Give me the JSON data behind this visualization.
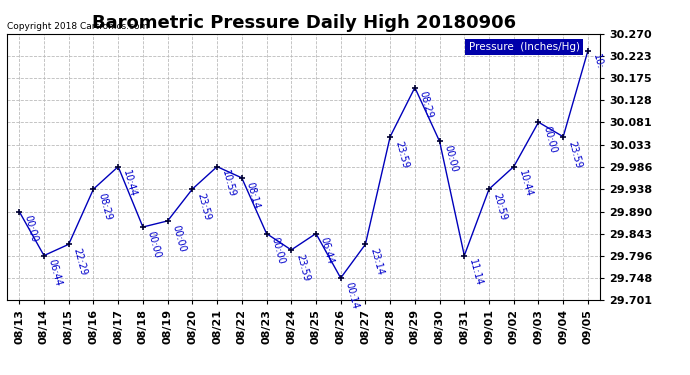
{
  "title": "Barometric Pressure Daily High 20180906",
  "copyright": "Copyright 2018 Cartronics.com",
  "legend_label": "Pressure  (Inches/Hg)",
  "ylim": [
    29.701,
    30.27
  ],
  "yticks": [
    29.701,
    29.748,
    29.796,
    29.843,
    29.89,
    29.938,
    29.986,
    30.033,
    30.081,
    30.128,
    30.175,
    30.223,
    30.27
  ],
  "dates": [
    "08/13",
    "08/14",
    "08/15",
    "08/16",
    "08/17",
    "08/18",
    "08/19",
    "08/20",
    "08/21",
    "08/22",
    "08/23",
    "08/24",
    "08/25",
    "08/26",
    "08/27",
    "08/28",
    "08/29",
    "08/30",
    "08/31",
    "09/01",
    "09/02",
    "09/03",
    "09/04",
    "09/05"
  ],
  "values": [
    29.89,
    29.796,
    29.82,
    29.938,
    29.986,
    29.857,
    29.87,
    29.938,
    29.986,
    29.962,
    29.843,
    29.808,
    29.843,
    29.748,
    29.82,
    30.05,
    30.155,
    30.04,
    29.796,
    29.938,
    29.986,
    30.081,
    30.05,
    30.234
  ],
  "time_labels": [
    "00:00",
    "06:44",
    "22:29",
    "08:29",
    "10:44",
    "00:00",
    "00:00",
    "23:59",
    "10:59",
    "08:14",
    "00:00",
    "23:59",
    "06:44",
    "00:14",
    "23:14",
    "23:59",
    "08:29",
    "00:00",
    "11:14",
    "20:59",
    "10:44",
    "00:00",
    "23:59",
    "10:"
  ],
  "line_color": "#0000BB",
  "marker_color": "#000033",
  "annotation_color": "#0000CC",
  "copyright_color": "#000000",
  "background_color": "#ffffff",
  "grid_color": "#BBBBBB",
  "title_fontsize": 13,
  "tick_fontsize": 8,
  "annotation_fontsize": 7,
  "legend_bg": "#0000AA",
  "legend_fg": "#ffffff"
}
